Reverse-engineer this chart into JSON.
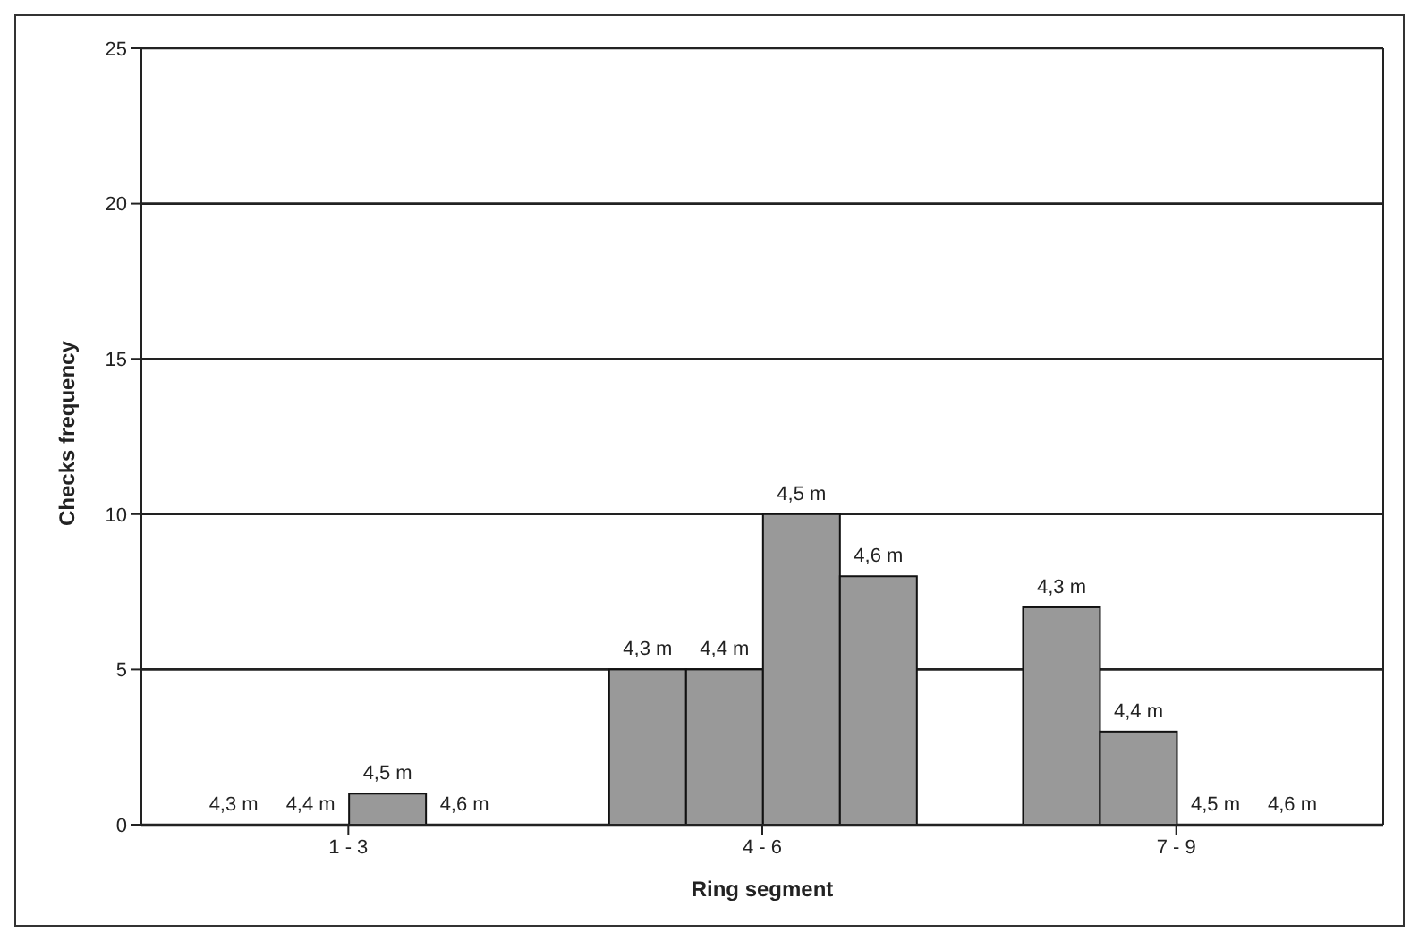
{
  "chart_data": {
    "type": "bar",
    "xlabel": "Ring segment",
    "ylabel": "Checks frequency",
    "categories": [
      "1 - 3",
      "4 - 6",
      "7 - 9"
    ],
    "series": [
      {
        "name": "4,3 m",
        "color": "#999999",
        "values": [
          0,
          5,
          7
        ]
      },
      {
        "name": "4,4 m",
        "color": "#999999",
        "values": [
          0,
          5,
          3
        ]
      },
      {
        "name": "4,5 m",
        "color": "#999999",
        "values": [
          1,
          10,
          0
        ]
      },
      {
        "name": "4,6 m",
        "color": "#999999",
        "values": [
          0,
          8,
          0
        ]
      }
    ],
    "ylim": [
      0,
      25
    ],
    "yticks": [
      0,
      5,
      10,
      15,
      20,
      25
    ],
    "grid": "y",
    "legend": false
  }
}
